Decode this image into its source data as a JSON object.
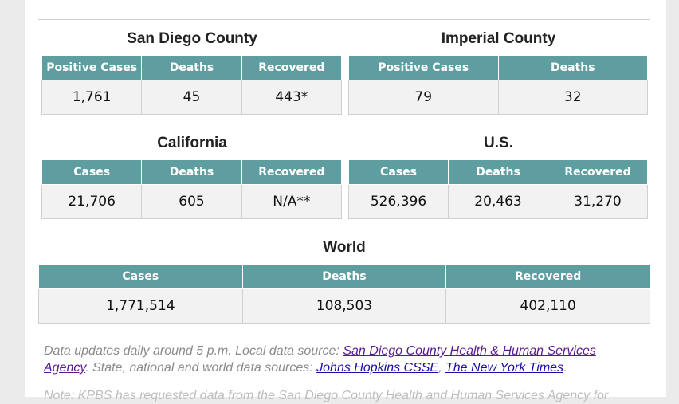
{
  "sandiego": {
    "title": "San Diego County",
    "headers": [
      "Positive Cases",
      "Deaths",
      "Recovered"
    ],
    "values": [
      "1,761",
      "45",
      "443*"
    ]
  },
  "imperial": {
    "title": "Imperial County",
    "headers": [
      "Positive Cases",
      "Deaths"
    ],
    "values": [
      "79",
      "32"
    ]
  },
  "california": {
    "title": "California",
    "headers": [
      "Cases",
      "Deaths",
      "Recovered"
    ],
    "values": [
      "21,706",
      "605",
      "N/A**"
    ]
  },
  "us": {
    "title": "U.S.",
    "headers": [
      "Cases",
      "Deaths",
      "Recovered"
    ],
    "values": [
      "526,396",
      "20,463",
      "31,270"
    ]
  },
  "world": {
    "title": "World",
    "headers": [
      "Cases",
      "Deaths",
      "Recovered"
    ],
    "values": [
      "1,771,514",
      "108,503",
      "402,110"
    ]
  },
  "note": {
    "intro": "Data updates daily around 5 p.m. Local data source: ",
    "link_local": "San Diego County Health & Human Services Agency",
    "mid": ". State, national and world data sources: ",
    "link_jhu": "Johns Hopkins CSSE",
    "sep": ", ",
    "link_nyt": "The New York Times",
    "end": "."
  },
  "note2": {
    "text": "Note: KPBS has requested data from the San Diego County Health and Human Services Agency for"
  }
}
